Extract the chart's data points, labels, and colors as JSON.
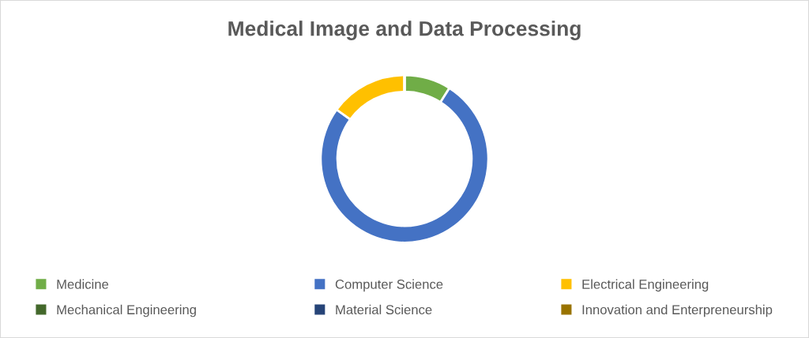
{
  "chart_data": {
    "type": "donut",
    "title": "Medical Image and Data Processing",
    "categories": [
      "Medicine",
      "Computer Science",
      "Electrical Engineering",
      "Mechanical Engineering",
      "Material Science",
      "Innovation and Enterpreneurship"
    ],
    "values": [
      9,
      76,
      15,
      0,
      0,
      0
    ],
    "colors": [
      "#70ad47",
      "#4472c4",
      "#ffc000",
      "#43682b",
      "#264478",
      "#997300"
    ],
    "legend": "bottom"
  }
}
